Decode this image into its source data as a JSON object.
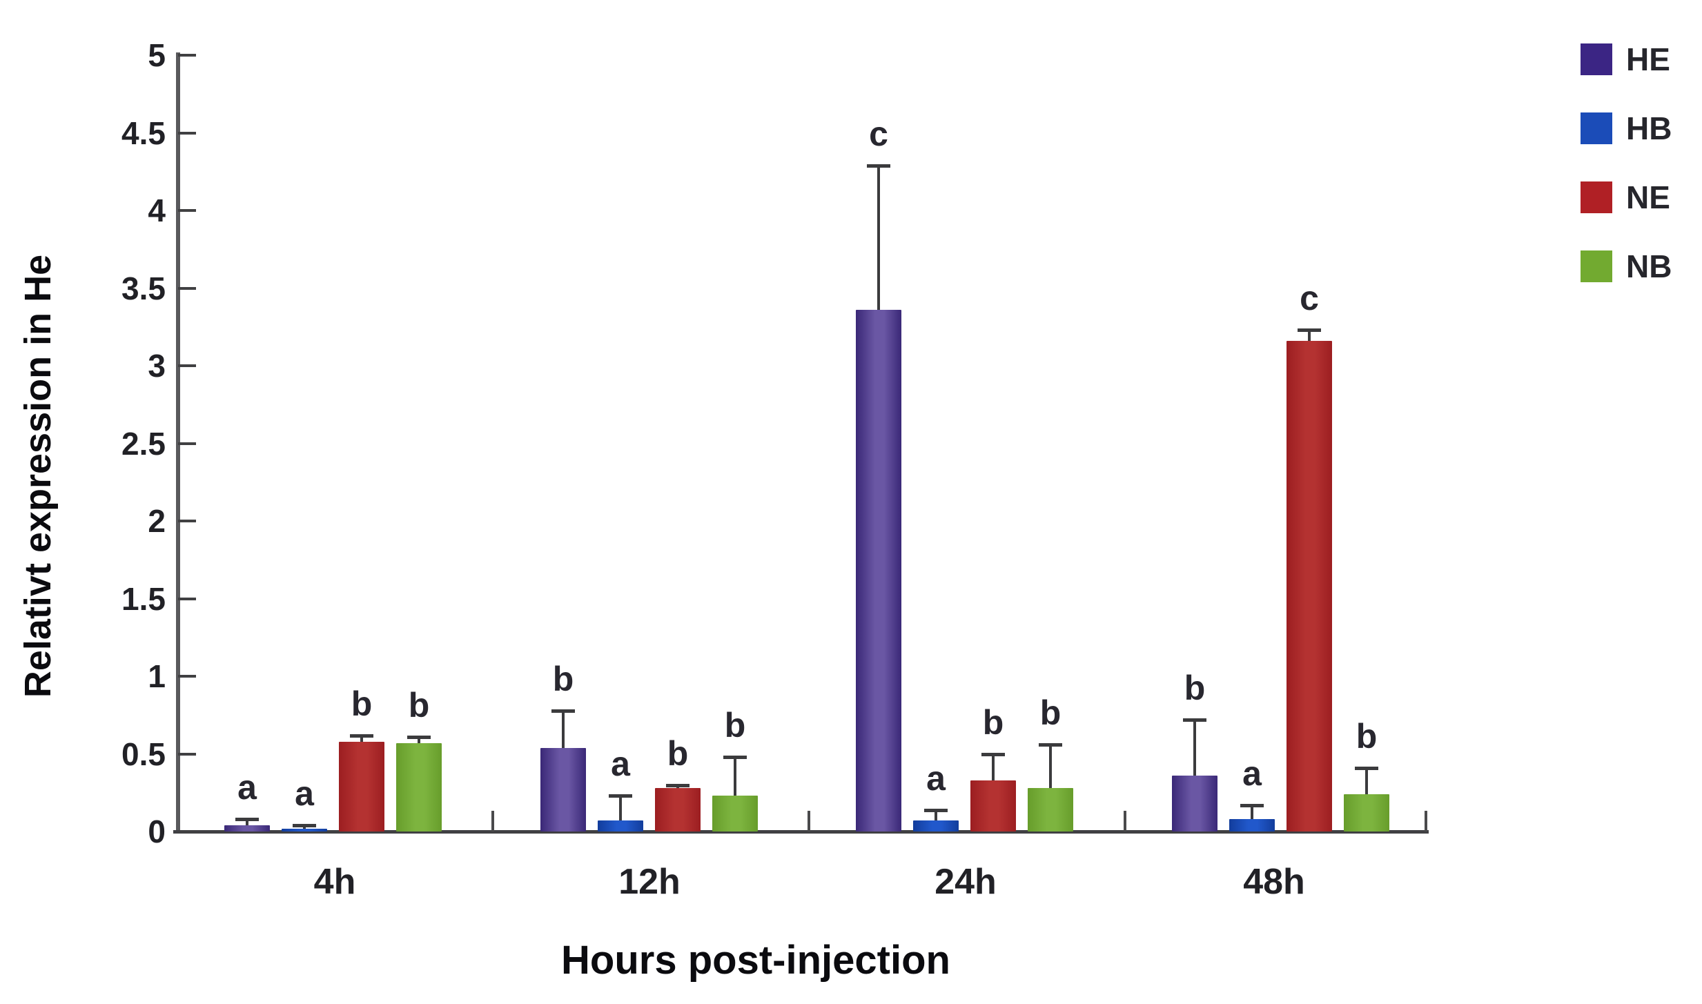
{
  "chart_data": {
    "type": "bar",
    "title": "",
    "ylabel": "Relativt expression in He",
    "xlabel": "Hours post-injection",
    "categories": [
      "4h",
      "12h",
      "24h",
      "48h"
    ],
    "series": [
      {
        "name": "HE",
        "values": [
          0.04,
          0.54,
          3.36,
          0.36
        ],
        "errors": [
          0.04,
          0.24,
          0.93,
          0.36
        ],
        "sig_letters": [
          "a",
          "b",
          "c",
          "b"
        ],
        "legend_color": "#3b2584",
        "bar_edge_color": "#3a2877",
        "bar_mid_color": "#6a57a4"
      },
      {
        "name": "HB",
        "values": [
          0.02,
          0.07,
          0.07,
          0.08
        ],
        "errors": [
          0.02,
          0.16,
          0.07,
          0.09
        ],
        "sig_letters": [
          "a",
          "a",
          "a",
          "a"
        ],
        "legend_color": "#1b4cb8",
        "bar_edge_color": "#123d9c",
        "bar_mid_color": "#2158cb"
      },
      {
        "name": "NE",
        "values": [
          0.58,
          0.28,
          0.33,
          3.16
        ],
        "errors": [
          0.04,
          0.02,
          0.17,
          0.07
        ],
        "sig_letters": [
          "b",
          "b",
          "b",
          "c"
        ],
        "legend_color": "#b02025",
        "bar_edge_color": "#9c1e21",
        "bar_mid_color": "#b43231"
      },
      {
        "name": "NB",
        "values": [
          0.57,
          0.23,
          0.28,
          0.24
        ],
        "errors": [
          0.04,
          0.25,
          0.28,
          0.17
        ],
        "sig_letters": [
          "b",
          "b",
          "b",
          "b"
        ],
        "legend_color": "#72aa30",
        "bar_edge_color": "#679d2b",
        "bar_mid_color": "#7db43f"
      }
    ],
    "ylim": [
      0,
      5
    ],
    "ytick_step": 0.5,
    "ytick_labels": [
      "0",
      "0.5",
      "1",
      "1.5",
      "2",
      "2.5",
      "3",
      "3.5",
      "4",
      "4.5",
      "5"
    ],
    "grid": false,
    "legend_position": "top-right",
    "error_bar_color": "#3b3b3d",
    "axis_color": "#59595c"
  }
}
